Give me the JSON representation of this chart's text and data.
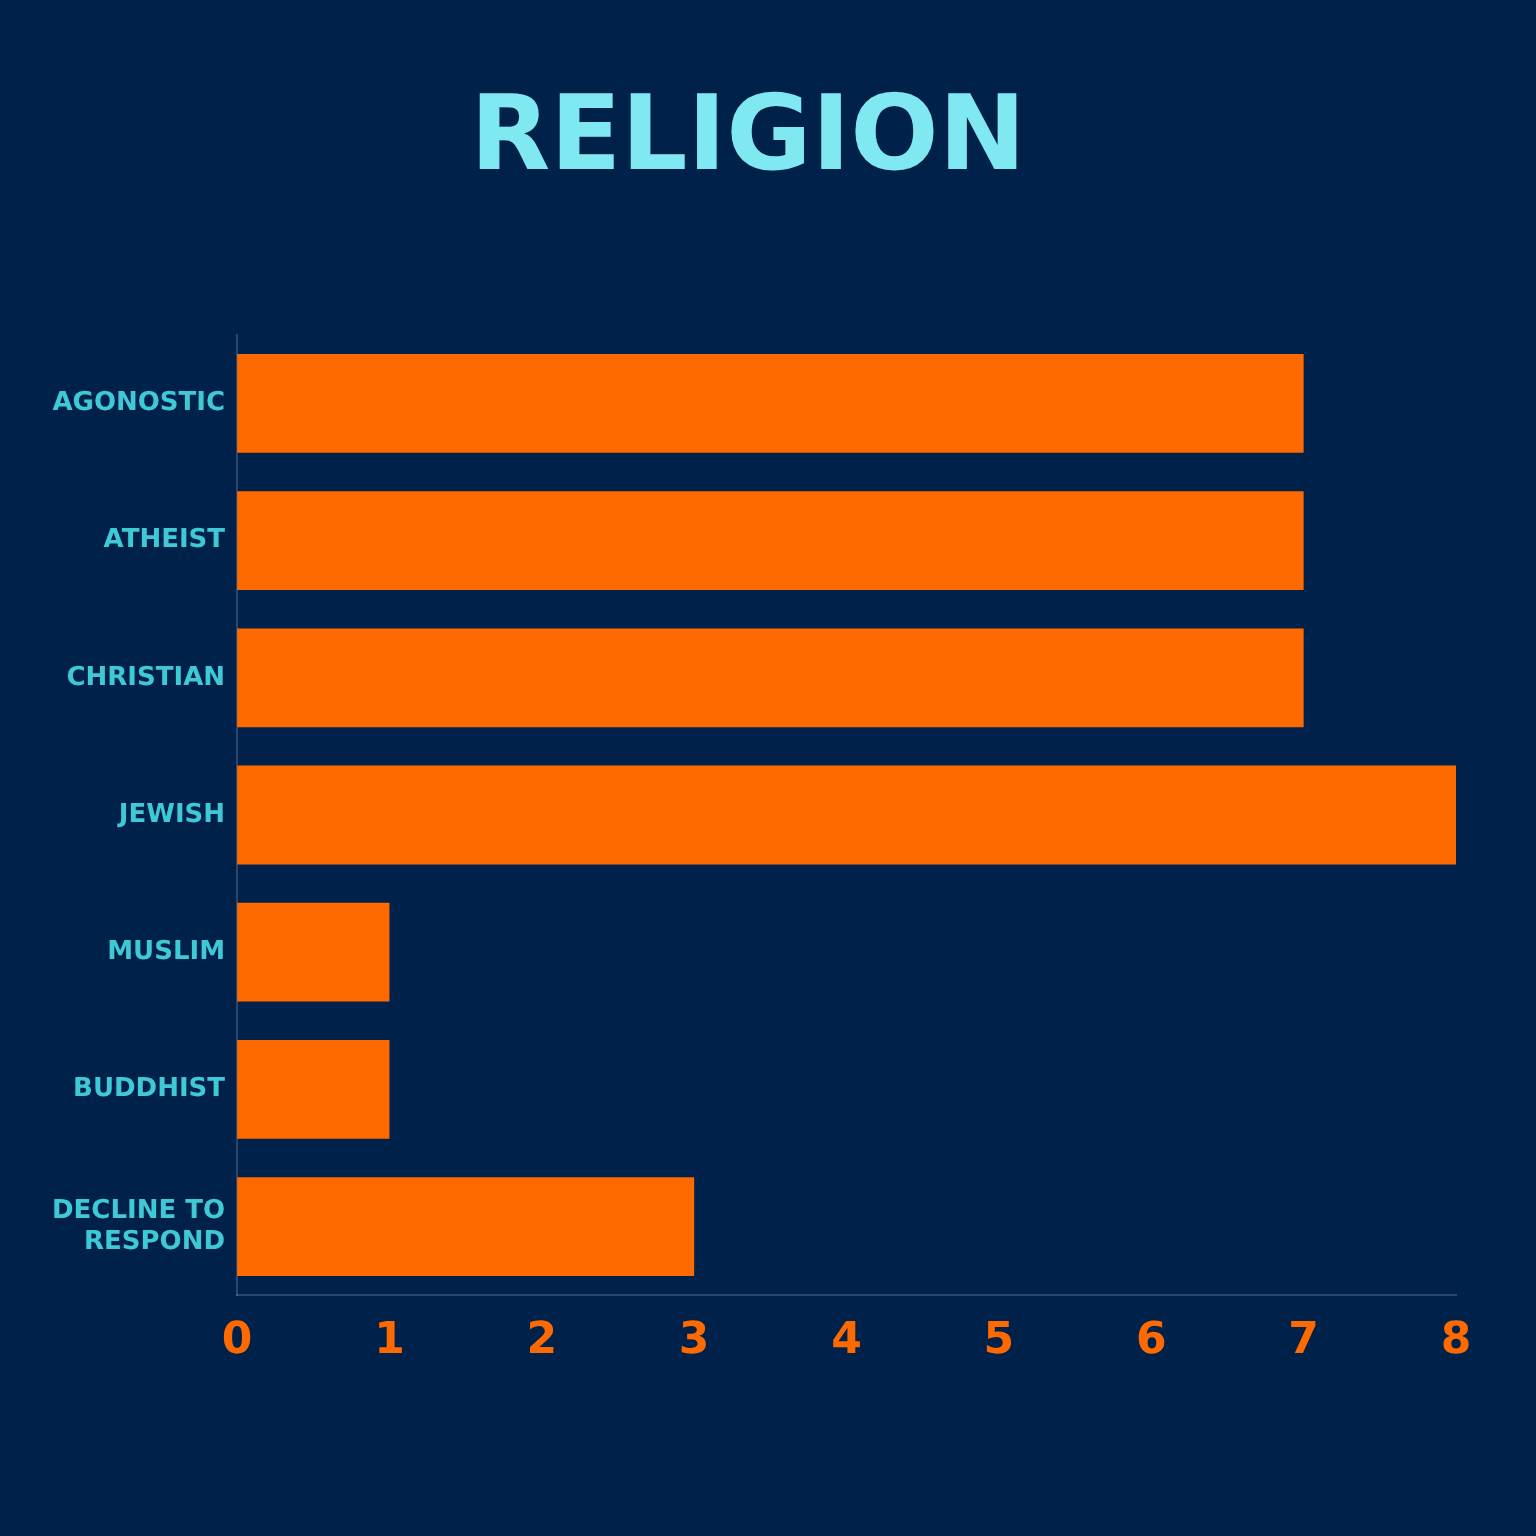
{
  "chart_data": {
    "type": "bar",
    "orientation": "horizontal",
    "title": "RELIGION",
    "categories": [
      "AGONOSTIC",
      "ATHEIST",
      "CHRISTIAN",
      "JEWISH",
      "MUSLIM",
      "BUDDHIST",
      "DECLINE TO RESPOND"
    ],
    "values": [
      7,
      7,
      7,
      8,
      1,
      1,
      3
    ],
    "color": "#ff6a00",
    "xlim": [
      0,
      8
    ],
    "xticks": [
      0,
      1,
      2,
      3,
      4,
      5,
      6,
      7,
      8
    ],
    "grid": false,
    "legend": false
  }
}
